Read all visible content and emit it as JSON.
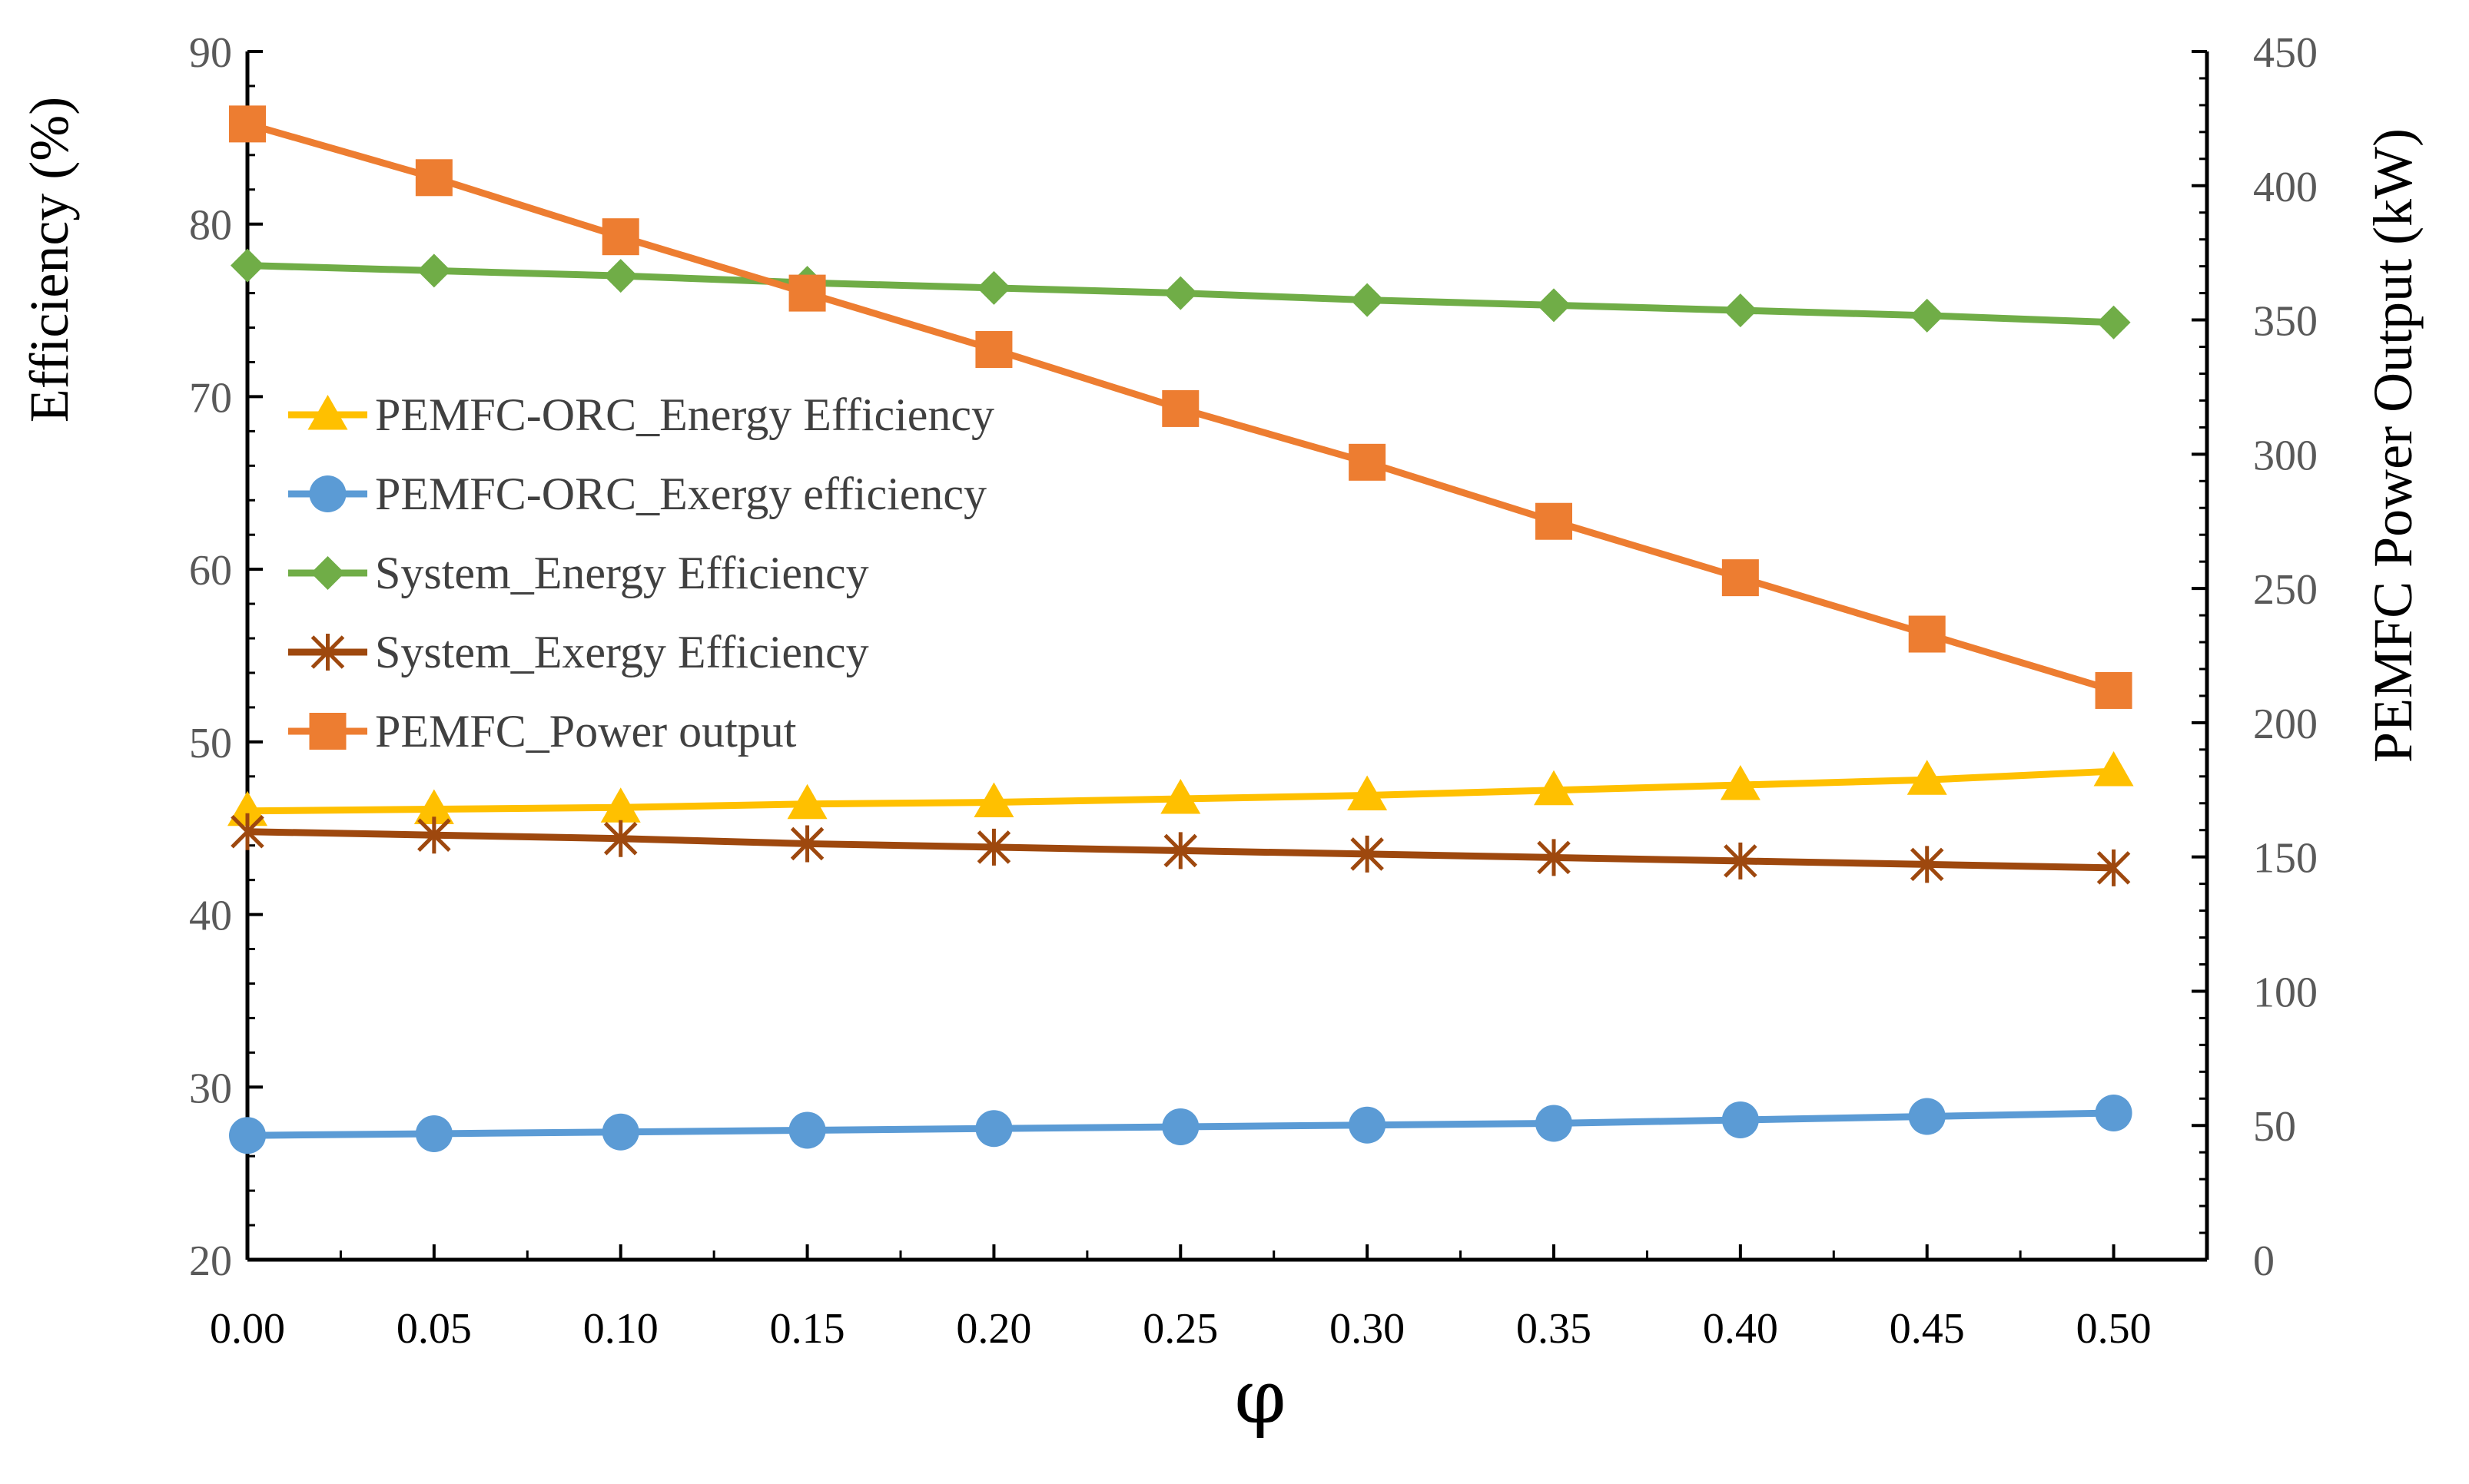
{
  "chart_data": {
    "type": "line",
    "xlabel": "φ",
    "ylabel": "Efficiency (%)",
    "y2label": "PEMFC Power Output (kW)",
    "xlim": [
      0,
      0.525
    ],
    "ylim": [
      20,
      90
    ],
    "y2lim": [
      0,
      450
    ],
    "x": [
      0.0,
      0.05,
      0.1,
      0.15,
      0.2,
      0.25,
      0.3,
      0.35,
      0.4,
      0.45,
      0.5
    ],
    "x_tick_labels": [
      "0.00",
      "0.05",
      "0.10",
      "0.15",
      "0.20",
      "0.25",
      "0.30",
      "0.35",
      "0.40",
      "0.45",
      "0.50"
    ],
    "y_ticks": [
      20,
      30,
      40,
      50,
      60,
      70,
      80,
      90
    ],
    "y2_ticks": [
      0,
      50,
      100,
      150,
      200,
      250,
      300,
      350,
      400,
      450
    ],
    "legend_position": "left-center",
    "series": [
      {
        "name": "PEMFC-ORC_Energy Efficiency",
        "axis": "left",
        "color": "#FFC000",
        "marker": "triangle",
        "values": [
          46.0,
          46.1,
          46.2,
          46.4,
          46.5,
          46.7,
          46.9,
          47.2,
          47.5,
          47.8,
          48.3
        ]
      },
      {
        "name": "PEMFC-ORC_Exergy efficiency",
        "axis": "left",
        "color": "#5B9BD5",
        "marker": "circle",
        "values": [
          27.2,
          27.3,
          27.4,
          27.5,
          27.6,
          27.7,
          27.8,
          27.9,
          28.1,
          28.3,
          28.5
        ]
      },
      {
        "name": "System_Energy Efficiency",
        "axis": "left",
        "color": "#70AD47",
        "marker": "diamond",
        "values": [
          77.6,
          77.3,
          77.0,
          76.6,
          76.3,
          76.0,
          75.6,
          75.3,
          75.0,
          74.7,
          74.3
        ]
      },
      {
        "name": "System_Exergy Efficiency",
        "axis": "left",
        "color": "#9E480E",
        "marker": "star",
        "values": [
          44.8,
          44.6,
          44.4,
          44.1,
          43.9,
          43.7,
          43.5,
          43.3,
          43.1,
          42.9,
          42.7
        ]
      },
      {
        "name": "PEMFC_Power output",
        "axis": "right",
        "color": "#ED7D31",
        "marker": "square",
        "values": [
          423,
          403,
          381,
          360,
          339,
          317,
          297,
          275,
          254,
          233,
          212
        ]
      }
    ]
  }
}
